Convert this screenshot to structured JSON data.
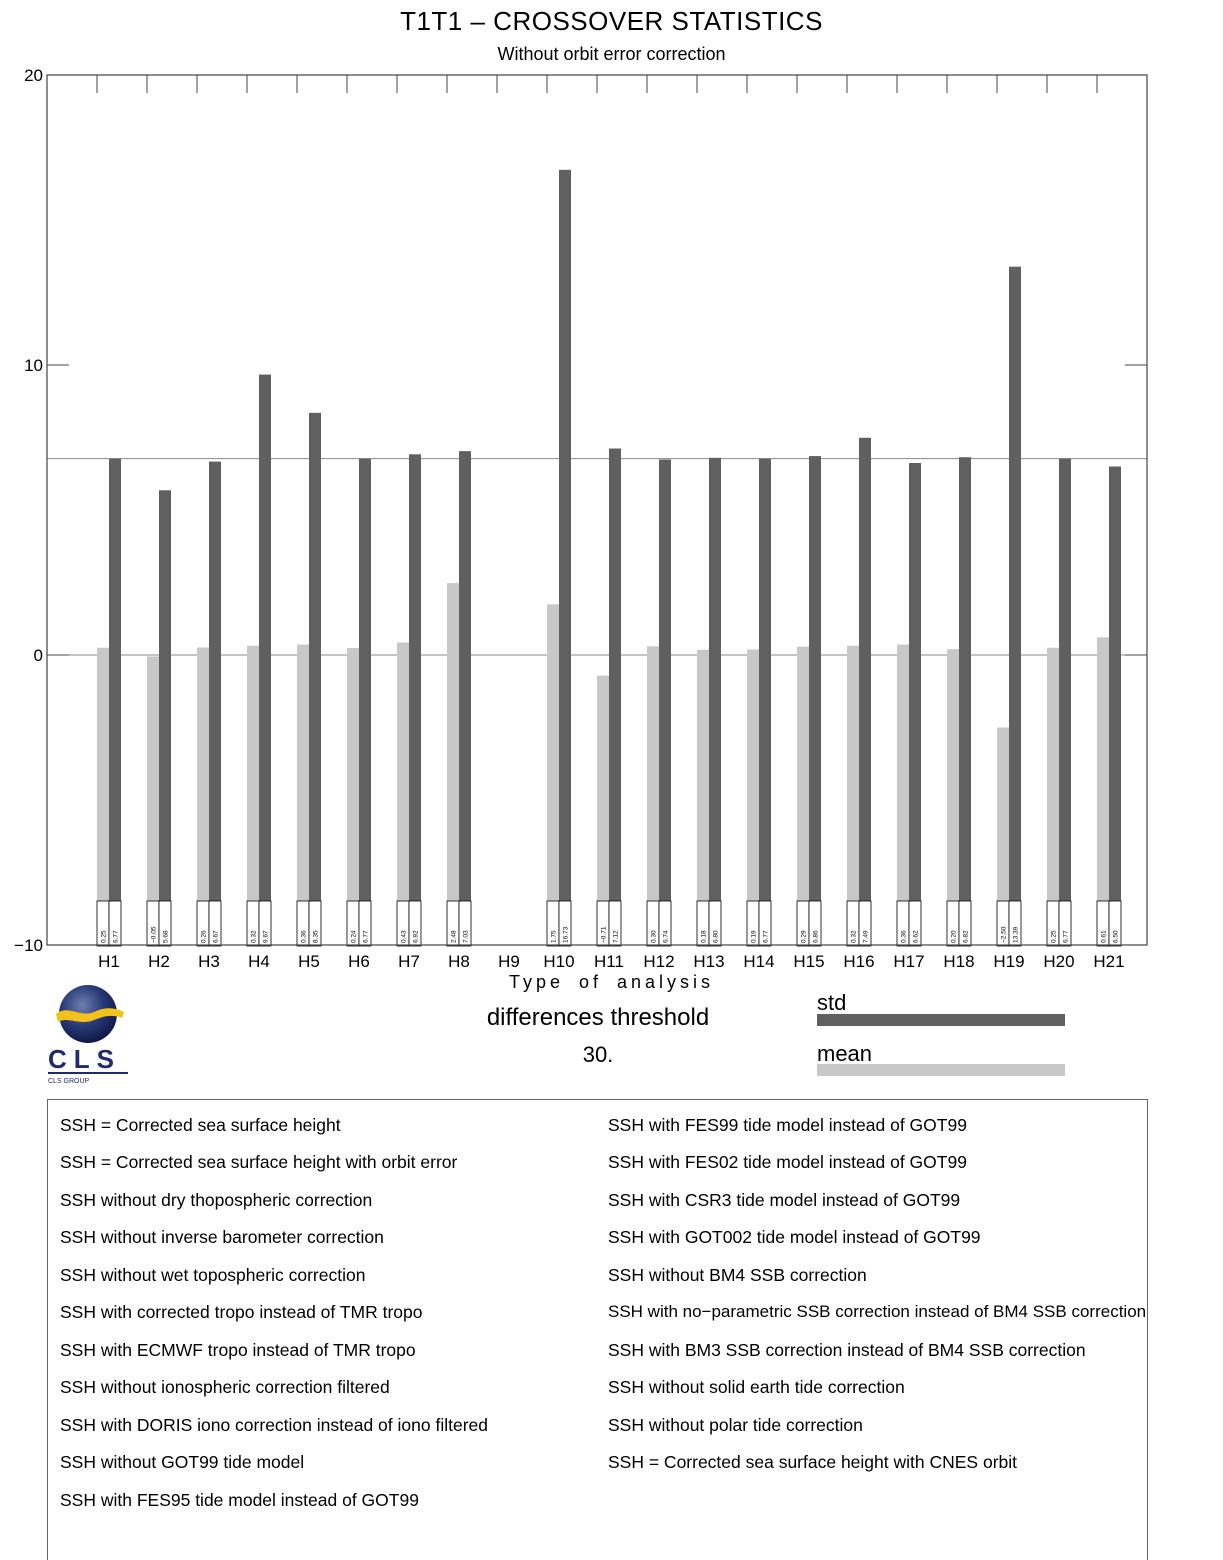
{
  "title": "T1T1 – CROSSOVER STATISTICS",
  "subtitle": "Without orbit error correction",
  "colors": {
    "std": "#606060",
    "mean": "#c8c8c8",
    "frame": "#444444"
  },
  "chart_data": {
    "type": "bar",
    "xlabel": "Type of analysis",
    "ylabel": "",
    "ylim": [
      -10,
      20
    ],
    "yticks": [
      -10,
      0,
      10,
      20
    ],
    "reference_lines": [
      0.0,
      6.77
    ],
    "categories": [
      "H1",
      "H2",
      "H3",
      "H4",
      "H5",
      "H6",
      "H7",
      "H8",
      "H9",
      "H10",
      "H11",
      "H12",
      "H13",
      "H14",
      "H15",
      "H16",
      "H17",
      "H18",
      "H19",
      "H20",
      "H21"
    ],
    "series": [
      {
        "name": "mean",
        "values": [
          0.25,
          -0.05,
          0.26,
          0.32,
          0.36,
          0.24,
          0.43,
          2.48,
          null,
          1.75,
          -0.71,
          0.3,
          0.18,
          0.19,
          0.29,
          0.32,
          0.36,
          0.2,
          -2.5,
          0.25,
          0.61
        ],
        "labels": [
          "0.25",
          "−0.05",
          "0.26",
          "0.32",
          "0.36",
          "0.24",
          "0.43",
          "2.48",
          "",
          "1.75",
          "−0.71",
          "0.30",
          "0.18",
          "0.19",
          "0.29",
          "0.32",
          "0.36",
          "0.20",
          "−2.50",
          "0.25",
          "0.61"
        ]
      },
      {
        "name": "std",
        "values": [
          6.77,
          5.68,
          6.67,
          9.67,
          8.35,
          6.77,
          6.92,
          7.03,
          null,
          16.73,
          7.12,
          6.74,
          6.8,
          6.77,
          6.86,
          7.49,
          6.62,
          6.82,
          13.39,
          6.77,
          6.5
        ],
        "labels": [
          "6.77",
          "5.68",
          "6.67",
          "9.67",
          "8.35",
          "6.77",
          "6.92",
          "7.03",
          "",
          "16.73",
          "7.12",
          "6.74",
          "6.80",
          "6.77",
          "6.86",
          "7.49",
          "6.62",
          "6.82",
          "13.39",
          "6.77",
          "6.50"
        ]
      }
    ],
    "legend_position": "bottom-right"
  },
  "threshold": {
    "label": "differences threshold",
    "value": "30."
  },
  "legend": {
    "std": "std",
    "mean": "mean"
  },
  "logo": {
    "text": "CLS",
    "tagline": "CLS GROUP"
  },
  "notes_left": [
    "SSH = Corrected sea surface height",
    "SSH = Corrected sea surface height with orbit error",
    "SSH without dry thopospheric correction",
    "SSH without inverse barometer correction",
    "SSH without wet topospheric correction",
    "SSH with corrected tropo instead of TMR tropo",
    "SSH with ECMWF tropo instead of TMR tropo",
    "SSH without ionospheric correction filtered",
    "SSH with DORIS iono correction instead of iono filtered",
    "SSH without GOT99 tide model",
    "SSH with FES95 tide model instead of GOT99"
  ],
  "notes_right": [
    "SSH with FES99 tide model instead of GOT99",
    "SSH with FES02 tide model instead of GOT99",
    "SSH with CSR3 tide model instead of GOT99",
    "SSH with GOT002 tide model instead of GOT99",
    "SSH without BM4 SSB correction",
    "SSH with no−parametric SSB correction instead of BM4 SSB correction",
    "SSH with BM3 SSB correction instead of BM4 SSB correction",
    "SSH without solid earth tide correction",
    "SSH without polar tide correction",
    "SSH = Corrected sea surface height with CNES orbit"
  ]
}
